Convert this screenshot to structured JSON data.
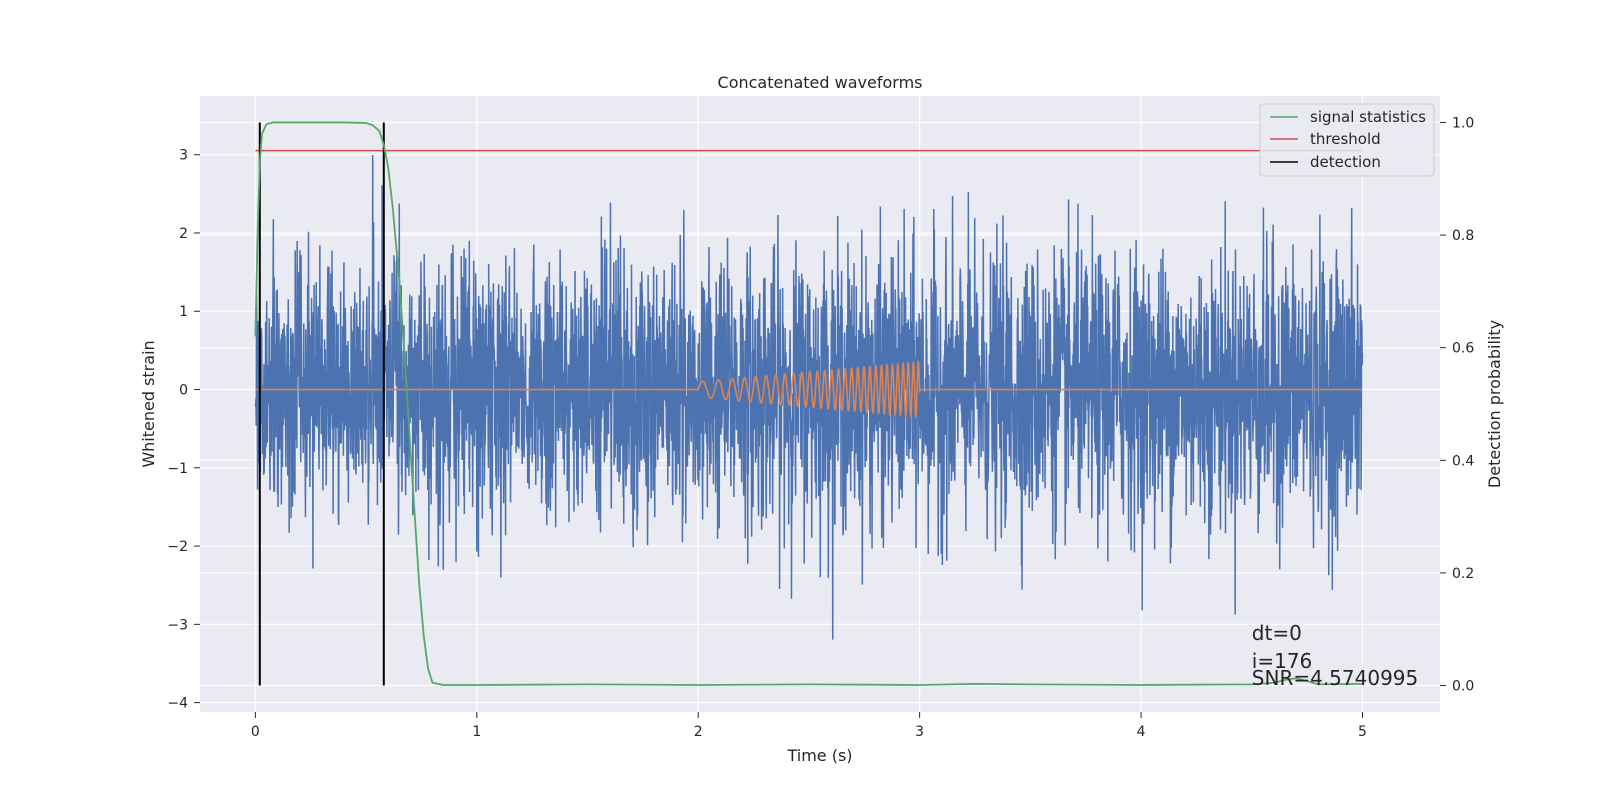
{
  "chart_data": {
    "type": "line",
    "title": "Concatenated waveforms",
    "xlabel": "Time (s)",
    "ylabel": "Whitened strain",
    "y2label": "Detection probability",
    "xlim": [
      -0.25,
      5.35
    ],
    "ylim": [
      -4.12,
      3.75
    ],
    "y2lim": [
      -0.047,
      1.047
    ],
    "xticks": [
      0,
      1,
      2,
      3,
      4,
      5
    ],
    "xtick_labels": [
      "0",
      "1",
      "2",
      "3",
      "4",
      "5"
    ],
    "yticks": [
      -4,
      -3,
      -2,
      -1,
      0,
      1,
      2,
      3
    ],
    "ytick_labels": [
      "−4",
      "−3",
      "−2",
      "−1",
      "0",
      "1",
      "2",
      "3"
    ],
    "y2ticks": [
      0.0,
      0.2,
      0.4,
      0.6,
      0.8,
      1.0
    ],
    "y2tick_labels": [
      "0.0",
      "0.2",
      "0.4",
      "0.6",
      "0.8",
      "1.0"
    ],
    "grid": true,
    "legend_position": "top-right",
    "legend": [
      {
        "label": "signal statistics",
        "color": "#55a868"
      },
      {
        "label": "threshold",
        "color": "#c44e52"
      },
      {
        "label": "detection",
        "color": "#000000"
      }
    ],
    "series": [
      {
        "name": "whitened strain",
        "color": "#4c72b0",
        "axis": "left",
        "x_range": [
          0,
          5
        ],
        "noise_std": 0.85,
        "y_range": [
          -3.6,
          3.45
        ]
      },
      {
        "name": "injected waveform",
        "color": "#dd8452",
        "axis": "left",
        "x_start": 2.0,
        "x_end": 3.0,
        "amplitude_start": 0.1,
        "amplitude_end": 0.35,
        "freq_start_hz": 12,
        "freq_end_hz": 45
      },
      {
        "name": "signal statistics",
        "color": "#55a868",
        "axis": "right",
        "x": [
          0,
          0.01,
          0.02,
          0.03,
          0.05,
          0.08,
          0.2,
          0.4,
          0.5,
          0.53,
          0.56,
          0.58,
          0.6,
          0.62,
          0.65,
          0.68,
          0.7,
          0.72,
          0.74,
          0.76,
          0.78,
          0.8,
          0.85,
          1.0,
          1.5,
          2.0,
          2.5,
          3.0,
          3.25,
          3.5,
          4.0,
          4.5,
          4.6,
          4.65,
          4.7,
          4.75,
          4.8,
          5.0
        ],
        "y": [
          0.62,
          0.8,
          0.93,
          0.98,
          0.997,
          1.0,
          1.0,
          1.0,
          0.999,
          0.995,
          0.985,
          0.96,
          0.92,
          0.85,
          0.72,
          0.55,
          0.42,
          0.3,
          0.18,
          0.09,
          0.03,
          0.005,
          0.001,
          0.001,
          0.002,
          0.001,
          0.002,
          0.001,
          0.003,
          0.002,
          0.001,
          0.002,
          0.005,
          0.01,
          0.013,
          0.008,
          0.002,
          0.003
        ]
      },
      {
        "name": "threshold",
        "color": "#c44e52",
        "axis": "right",
        "x": [
          0,
          5
        ],
        "y": [
          0.95,
          0.95
        ]
      },
      {
        "name": "detection",
        "color": "#000000",
        "axis": "right",
        "events_x": [
          0.02,
          0.58
        ],
        "y": [
          0.0,
          1.0
        ]
      }
    ],
    "annotations": [
      "dt=0",
      "i=176",
      "SNR=4.5740995"
    ],
    "annotation_position": {
      "x": 4.5,
      "y": -3.2
    }
  }
}
